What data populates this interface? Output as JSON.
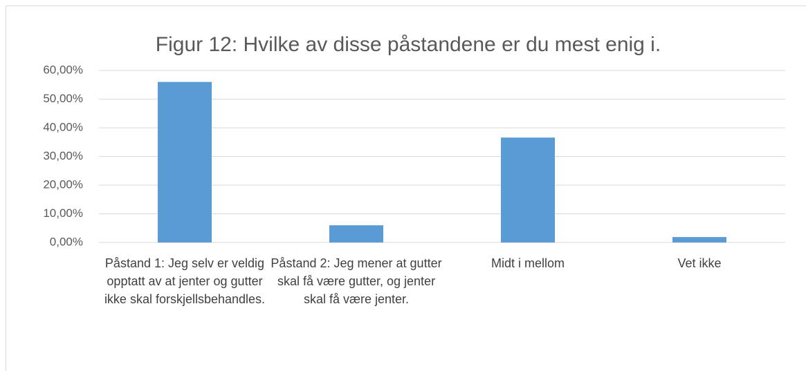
{
  "chart_data": {
    "type": "bar",
    "title": "Figur 12: Hvilke av disse påstandene er du mest enig i.",
    "categories": [
      "Påstand 1: Jeg selv er veldig opptatt av at jenter og gutter ikke skal forskjellsbehandles.",
      "Påstand 2: Jeg mener at gutter skal få være gutter, og jenter skal få være jenter.",
      "Midt i mellom",
      "Vet ikke"
    ],
    "values": [
      56,
      6,
      36.6,
      1.9
    ],
    "color": "#5b9bd5",
    "ylim": [
      0,
      60
    ],
    "yticks": [
      {
        "value": 0,
        "label": "0,00%"
      },
      {
        "value": 10,
        "label": "10,00%"
      },
      {
        "value": 20,
        "label": "20,00%"
      },
      {
        "value": 30,
        "label": "30,00%"
      },
      {
        "value": 40,
        "label": "40,00%"
      },
      {
        "value": 50,
        "label": "50,00%"
      },
      {
        "value": 60,
        "label": "60,00%"
      }
    ],
    "grid": true
  }
}
